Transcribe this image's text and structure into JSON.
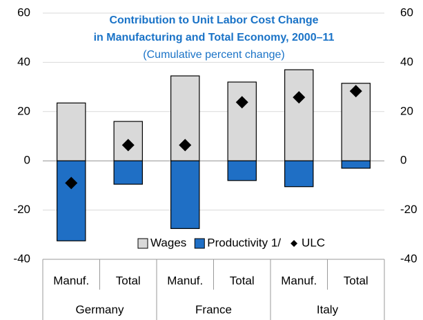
{
  "chart_data": {
    "type": "bar",
    "title": [
      "Contribution to Unit Labor Cost Change",
      "in Manufacturing and Total Economy, 2000–11"
    ],
    "subtitle": "(Cumulative percent change)",
    "categories": [
      "Manuf.",
      "Total",
      "Manuf.",
      "Total",
      "Manuf.",
      "Total"
    ],
    "groups": [
      "Germany",
      "France",
      "Italy"
    ],
    "series": [
      {
        "name": "Wages",
        "type": "bar",
        "color": "#d9d9d9",
        "values": [
          23.5,
          16,
          34.5,
          32,
          37,
          31.5
        ]
      },
      {
        "name": "Productivity 1/",
        "type": "bar",
        "color": "#1f6fc5",
        "values": [
          -32.5,
          -9.5,
          -27.5,
          -8,
          -10.5,
          -3
        ]
      },
      {
        "name": "ULC",
        "type": "marker",
        "color": "#000000",
        "values": [
          -9,
          6.4,
          6.4,
          23.8,
          25.8,
          28.3
        ]
      }
    ],
    "ylim": [
      -40,
      60
    ],
    "yticks": [
      -40,
      -20,
      0,
      20,
      40,
      60
    ],
    "y2lim": [
      -40,
      60
    ],
    "y2ticks": [
      -40,
      -20,
      0,
      20,
      40,
      60
    ],
    "grid": true,
    "legend": "lower right"
  }
}
